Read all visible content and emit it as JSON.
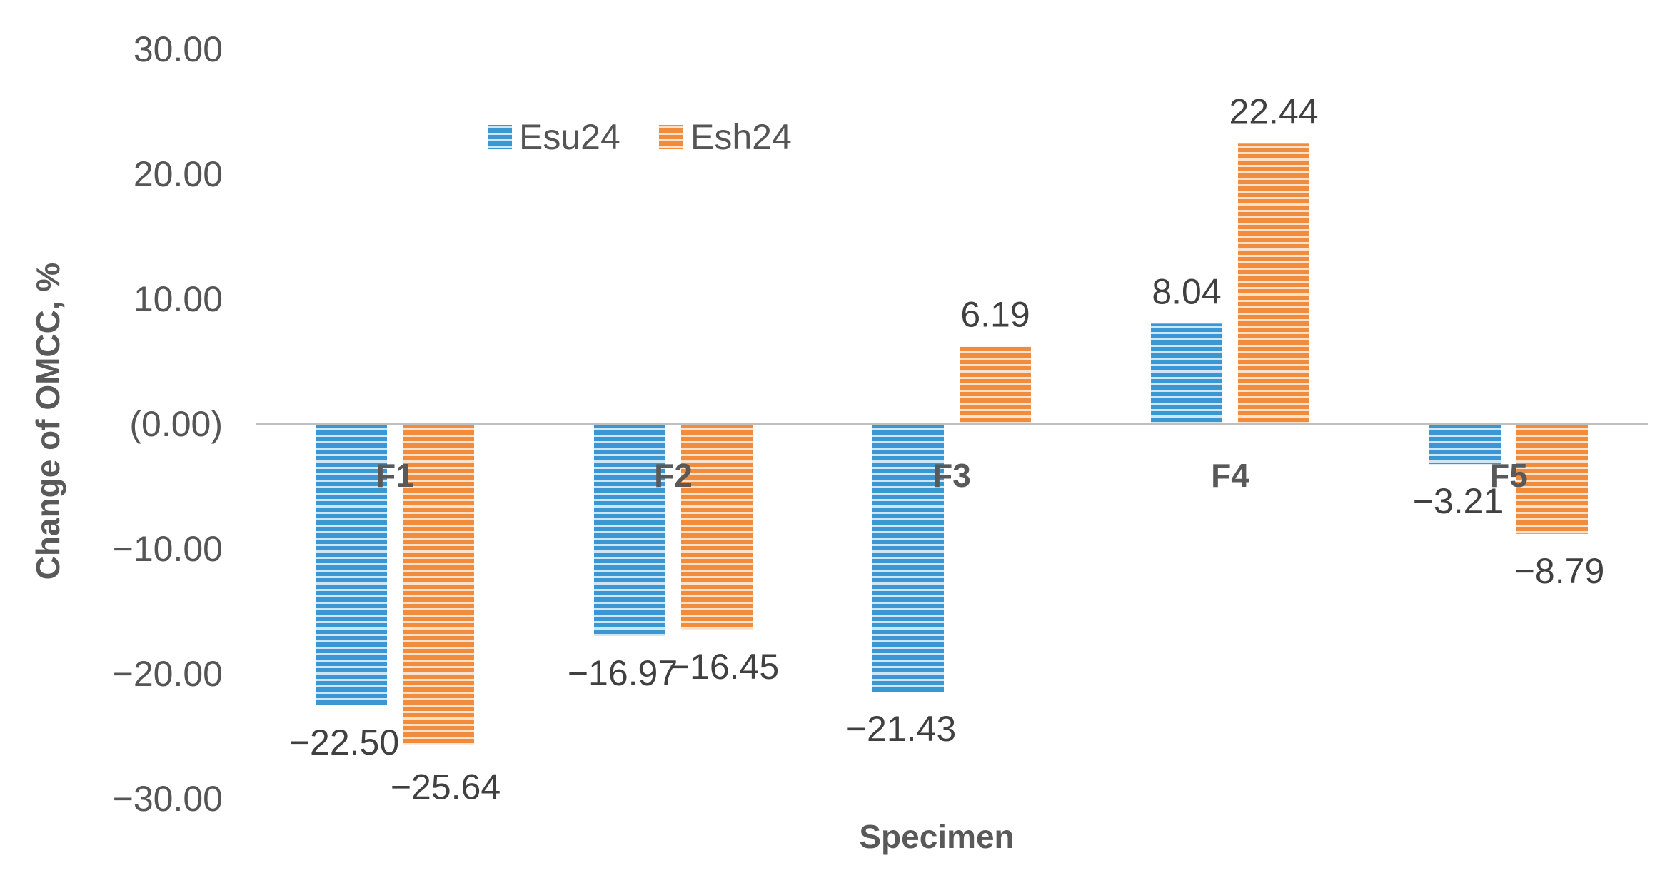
{
  "chart_data": {
    "type": "bar",
    "title": "",
    "xlabel": "Specimen",
    "ylabel": "Change of OMCC, %",
    "ylim": [
      -30,
      30
    ],
    "y_ticks": [
      30,
      20,
      10,
      0,
      -10,
      -20,
      -30
    ],
    "y_tick_labels": [
      "30.00",
      "20.00",
      "10.00",
      "(0.00)",
      "−10.00",
      "−20.00",
      "−30.00"
    ],
    "categories": [
      "F1",
      "F2",
      "F3",
      "F4",
      "F5"
    ],
    "series": [
      {
        "name": "Esu24",
        "color": "#3A97D4",
        "values": [
          -22.5,
          -16.97,
          -21.43,
          8.04,
          -3.21
        ],
        "labels": [
          "−22.50",
          "−16.97",
          "−21.43",
          "8.04",
          "−3.21"
        ]
      },
      {
        "name": "Esh24",
        "color": "#F08C3C",
        "values": [
          -25.64,
          -16.45,
          6.19,
          22.44,
          -8.79
        ],
        "labels": [
          "−25.64",
          "−16.45",
          "6.19",
          "22.44",
          "−8.79"
        ]
      }
    ],
    "legend_position": "top-left",
    "grid": false
  }
}
